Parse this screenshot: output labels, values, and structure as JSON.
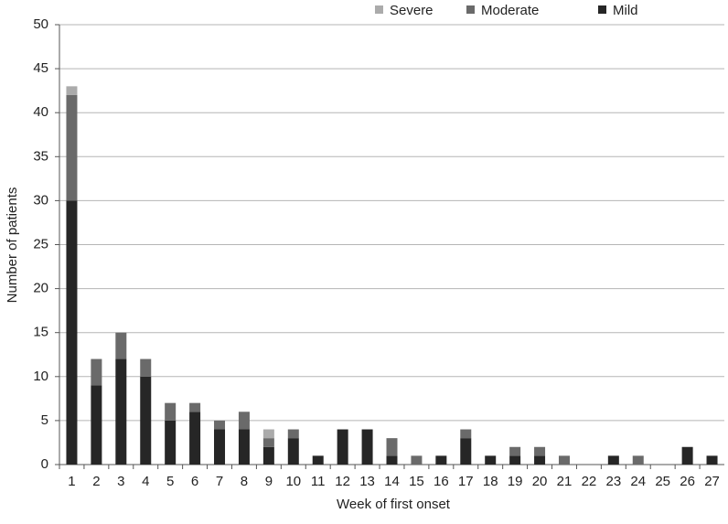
{
  "chart_data": {
    "type": "stacked-bar",
    "x_label": "Week of first onset",
    "y_label": "Number of patients",
    "categories": [
      "1",
      "2",
      "3",
      "4",
      "5",
      "6",
      "7",
      "8",
      "9",
      "10",
      "11",
      "12",
      "13",
      "14",
      "15",
      "16",
      "17",
      "18",
      "19",
      "20",
      "21",
      "22",
      "23",
      "24",
      "25",
      "26",
      "27"
    ],
    "series": [
      {
        "name": "Severe",
        "color": "#ababab",
        "values": [
          1,
          0,
          0,
          0,
          0,
          0,
          0,
          0,
          1,
          0,
          0,
          0,
          0,
          0,
          0,
          0,
          0,
          0,
          0,
          0,
          0,
          0,
          0,
          0,
          0,
          0,
          0
        ]
      },
      {
        "name": "Moderate",
        "color": "#6a6a6a",
        "values": [
          12,
          3,
          3,
          2,
          2,
          1,
          1,
          2,
          1,
          1,
          0,
          0,
          0,
          2,
          1,
          0,
          1,
          0,
          1,
          1,
          1,
          0,
          0,
          1,
          0,
          0,
          0
        ]
      },
      {
        "name": "Mild",
        "color": "#262626",
        "values": [
          30,
          9,
          12,
          10,
          5,
          6,
          4,
          4,
          2,
          3,
          1,
          4,
          4,
          1,
          0,
          1,
          3,
          1,
          1,
          1,
          0,
          0,
          1,
          0,
          0,
          2,
          1
        ]
      }
    ],
    "ylim": [
      0,
      50
    ],
    "yticks": [
      0,
      5,
      10,
      15,
      20,
      25,
      30,
      35,
      40,
      45,
      50
    ],
    "grid": true
  }
}
